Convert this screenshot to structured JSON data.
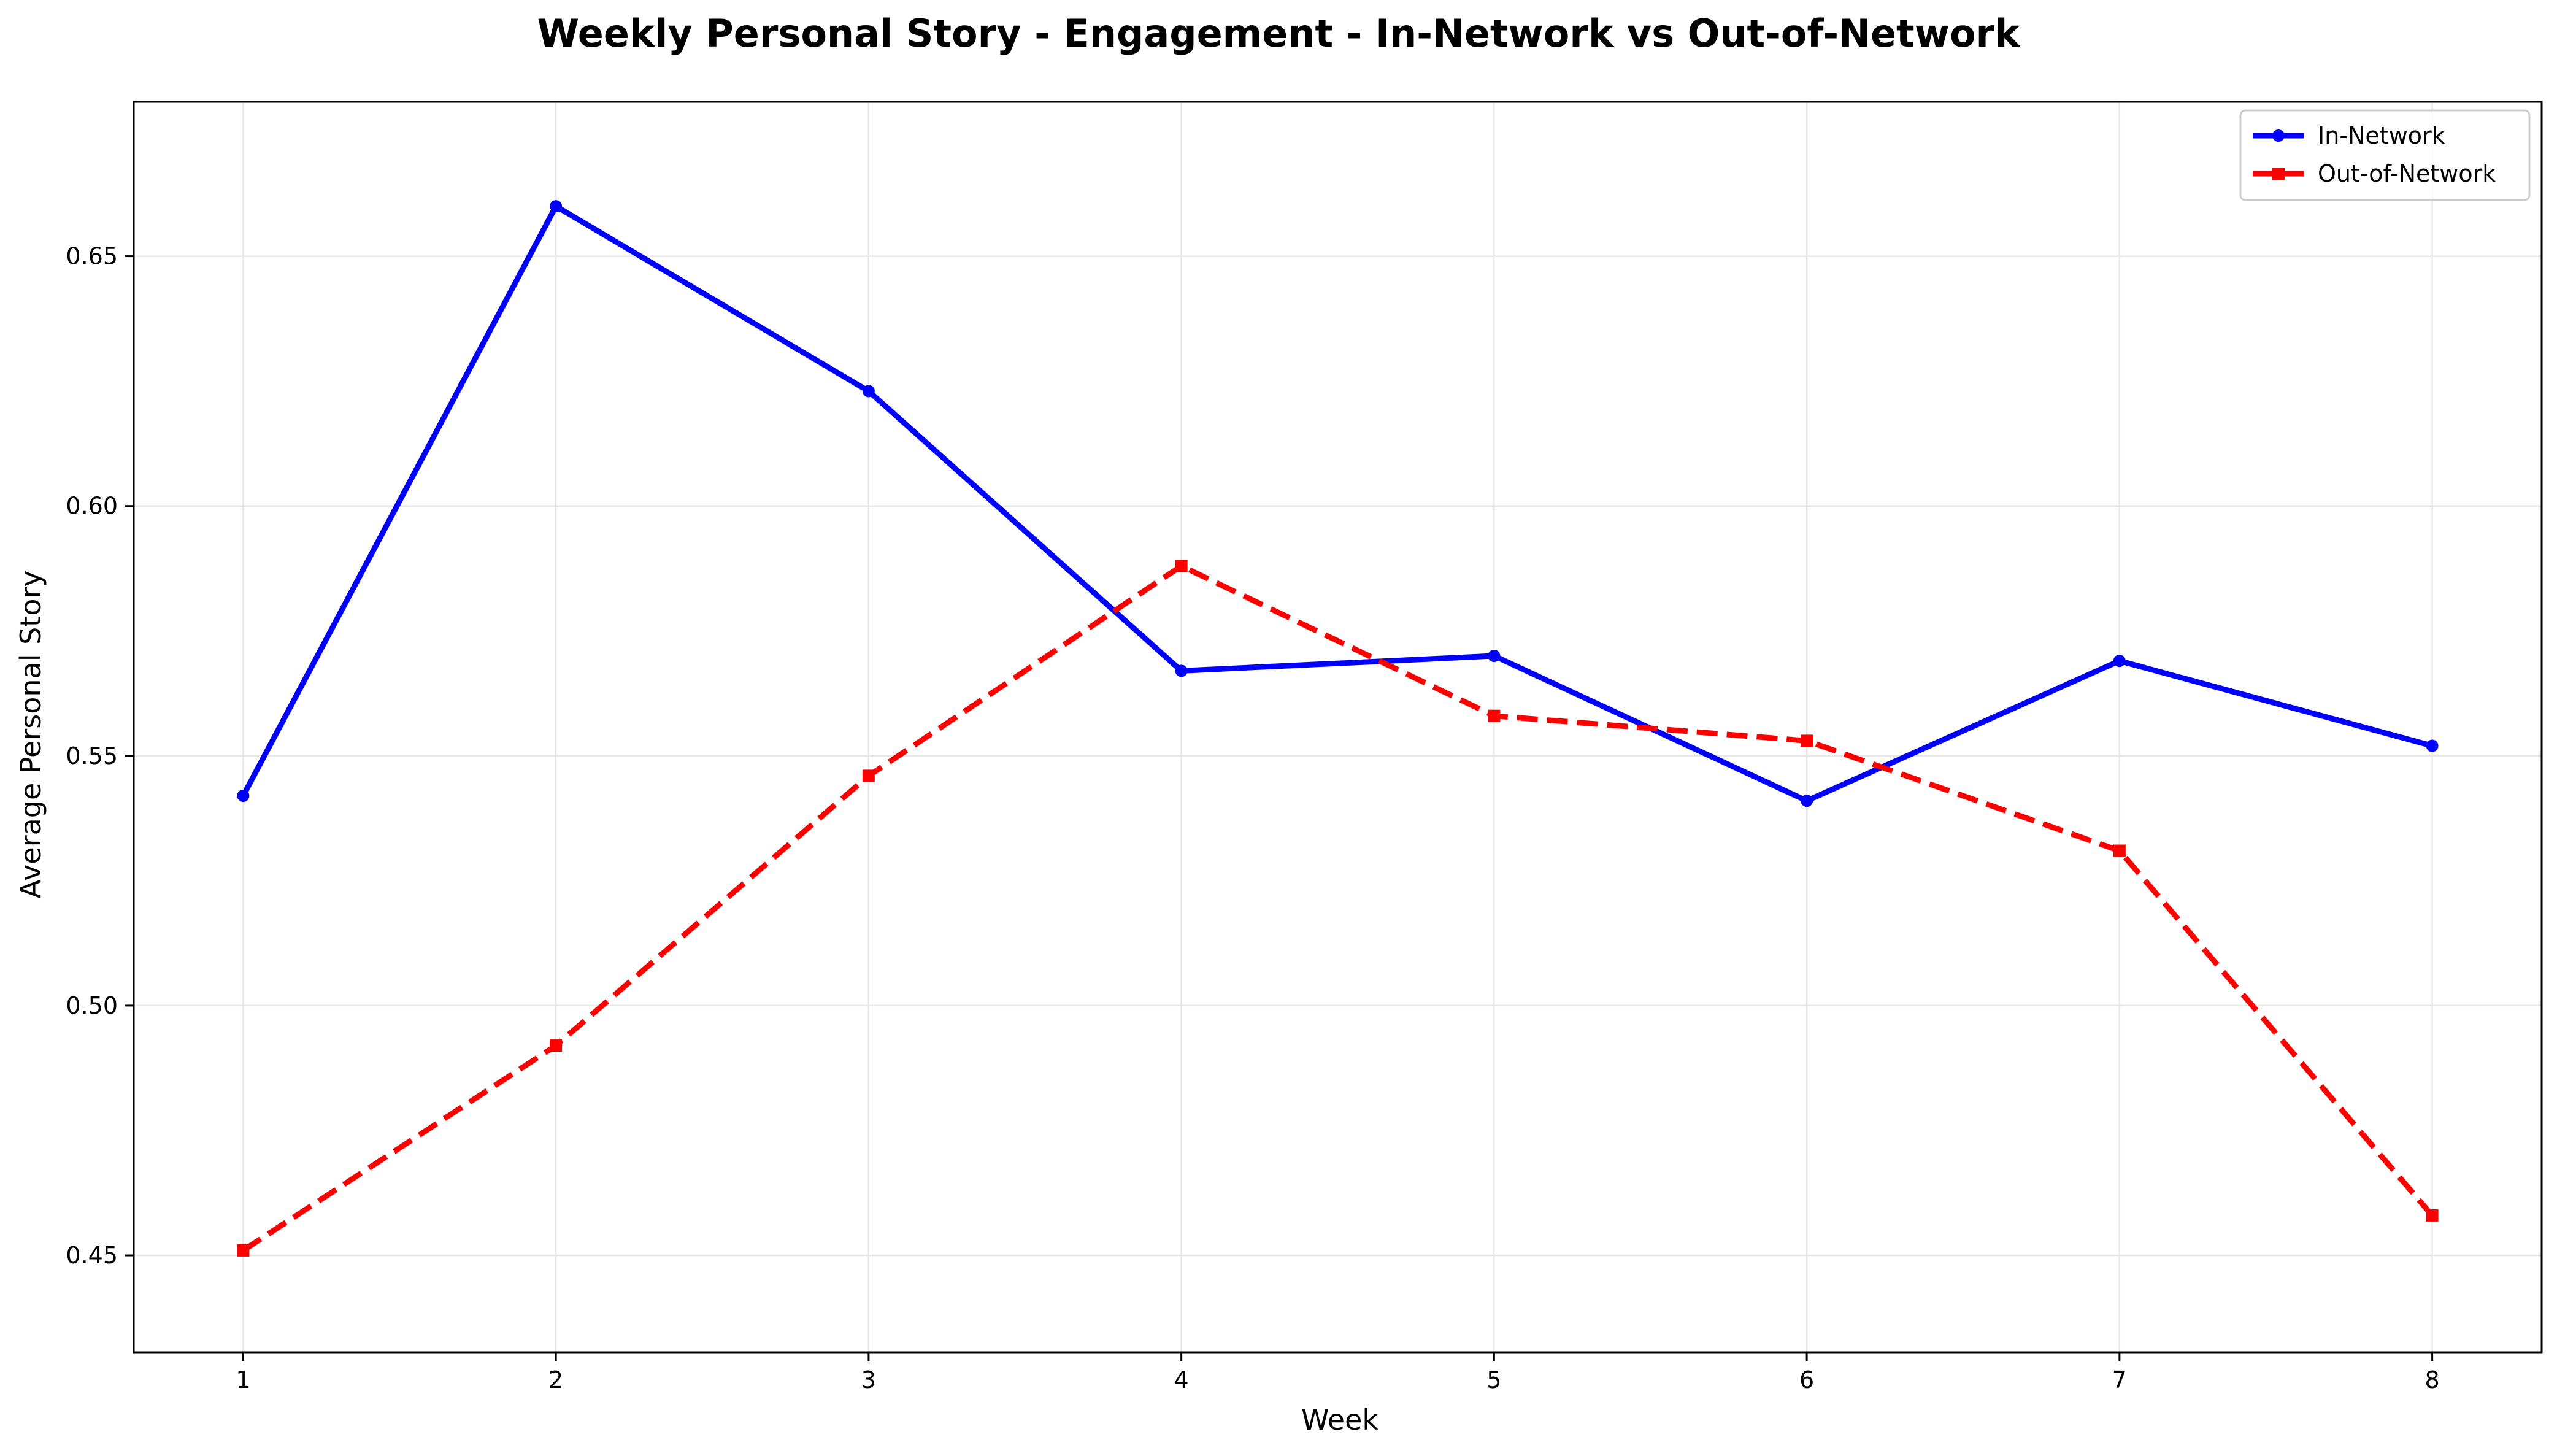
{
  "chart_data": {
    "type": "line",
    "title": "Weekly Personal Story - Engagement - In-Network vs Out-of-Network",
    "xlabel": "Week",
    "ylabel": "Average Personal Story",
    "x": [
      1,
      2,
      3,
      4,
      5,
      6,
      7,
      8
    ],
    "xlim": [
      0.65,
      8.35
    ],
    "ylim": [
      0.4306,
      0.6809
    ],
    "xticks": [
      1,
      2,
      3,
      4,
      5,
      6,
      7,
      8
    ],
    "yticks": [
      0.45,
      0.5,
      0.55,
      0.6,
      0.65
    ],
    "ytick_labels": [
      "0.45",
      "0.50",
      "0.55",
      "0.60",
      "0.65"
    ],
    "grid": true,
    "legend_position": "top-right",
    "series": [
      {
        "name": "In-Network",
        "color": "#0000ff",
        "line_style": "solid",
        "marker": "circle",
        "values": [
          0.542,
          0.66,
          0.623,
          0.567,
          0.57,
          0.541,
          0.569,
          0.552
        ]
      },
      {
        "name": "Out-of-Network",
        "color": "#ff0000",
        "line_style": "dashed",
        "marker": "square",
        "values": [
          0.451,
          0.492,
          0.546,
          0.588,
          0.558,
          0.553,
          0.531,
          0.458
        ]
      }
    ]
  }
}
